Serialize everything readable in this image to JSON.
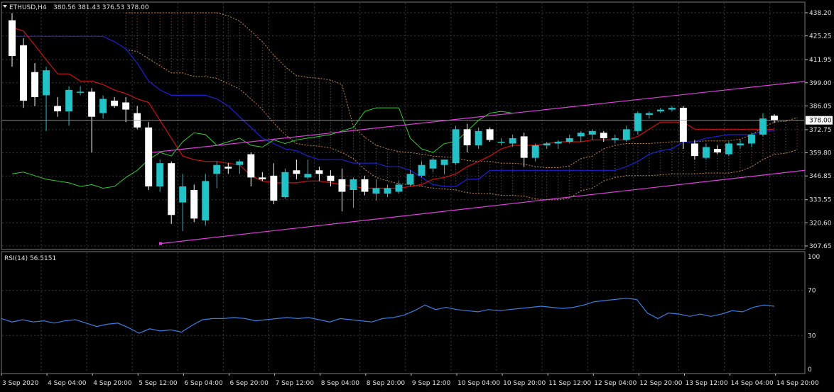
{
  "main_panel": {
    "symbol_header": "ETHUSD,H4",
    "ohlc_header": "380.56 381.43 376.53 378.00",
    "current_price_label": "378.00"
  },
  "rsi_panel": {
    "label": "RSI(14) 56.5151"
  },
  "colors": {
    "background": "#000000",
    "grid": "#3a3a3a",
    "bull_candle": "#22c3c8",
    "bear_candle": "#ffffff",
    "kijun": "#1f1fd6",
    "tenkan": "#d01010",
    "chikou": "#2ecc2e",
    "cloud": "#c8843c",
    "channel": "#e040e0",
    "rsi": "#3a7fe0"
  },
  "chart_data": [
    {
      "type": "candlestick",
      "symbol": "ETHUSD",
      "timeframe": "H4",
      "ylim": [
        307.65,
        438.2
      ],
      "yticks": [
        307.65,
        320.6,
        333.55,
        346.85,
        359.8,
        372.75,
        386.05,
        399.0,
        411.95,
        425.25,
        438.2
      ],
      "ytick_labels": [
        "307.65",
        "320.60",
        "333.55",
        "346.85",
        "359.80",
        "372.75",
        "386.05",
        "399.00",
        "411.95",
        "425.25",
        "438.20"
      ],
      "xtick_labels": [
        "3 Sep 2020",
        "4 Sep 04:00",
        "4 Sep 20:00",
        "5 Sep 12:00",
        "6 Sep 04:00",
        "6 Sep 20:00",
        "7 Sep 12:00",
        "8 Sep 04:00",
        "8 Sep 20:00",
        "9 Sep 12:00",
        "10 Sep 04:00",
        "10 Sep 20:00",
        "11 Sep 12:00",
        "12 Sep 04:00",
        "12 Sep 20:00",
        "13 Sep 12:00",
        "14 Sep 04:00",
        "14 Sep 20:00"
      ],
      "candles": [
        {
          "o": 434,
          "h": 438,
          "l": 408,
          "c": 414
        },
        {
          "o": 420,
          "h": 424,
          "l": 385,
          "c": 389
        },
        {
          "o": 405,
          "h": 410,
          "l": 386,
          "c": 391
        },
        {
          "o": 392,
          "h": 408,
          "l": 372,
          "c": 406
        },
        {
          "o": 386,
          "h": 391,
          "l": 380,
          "c": 383
        },
        {
          "o": 383,
          "h": 397,
          "l": 375,
          "c": 395
        },
        {
          "o": 394,
          "h": 397,
          "l": 392,
          "c": 394
        },
        {
          "o": 394,
          "h": 396,
          "l": 360,
          "c": 380
        },
        {
          "o": 382,
          "h": 392,
          "l": 379,
          "c": 390
        },
        {
          "o": 389,
          "h": 391,
          "l": 385,
          "c": 386
        },
        {
          "o": 388,
          "h": 391,
          "l": 377,
          "c": 384
        },
        {
          "o": 382,
          "h": 386,
          "l": 373,
          "c": 374
        },
        {
          "o": 374,
          "h": 377,
          "l": 339,
          "c": 341
        },
        {
          "o": 341,
          "h": 356,
          "l": 338,
          "c": 354
        },
        {
          "o": 354,
          "h": 355,
          "l": 320,
          "c": 325
        },
        {
          "o": 332,
          "h": 348,
          "l": 316,
          "c": 341
        },
        {
          "o": 339,
          "h": 342,
          "l": 321,
          "c": 323
        },
        {
          "o": 322,
          "h": 348,
          "l": 319,
          "c": 344
        },
        {
          "o": 348,
          "h": 355,
          "l": 340,
          "c": 353
        },
        {
          "o": 352,
          "h": 354,
          "l": 348,
          "c": 351
        },
        {
          "o": 353,
          "h": 356,
          "l": 348,
          "c": 355
        },
        {
          "o": 359,
          "h": 360,
          "l": 341,
          "c": 346
        },
        {
          "o": 346,
          "h": 349,
          "l": 344,
          "c": 345
        },
        {
          "o": 347,
          "h": 354,
          "l": 331,
          "c": 333
        },
        {
          "o": 335,
          "h": 351,
          "l": 334,
          "c": 349
        },
        {
          "o": 350,
          "h": 356,
          "l": 345,
          "c": 348
        },
        {
          "o": 346,
          "h": 356,
          "l": 345,
          "c": 348
        },
        {
          "o": 350,
          "h": 352,
          "l": 344,
          "c": 348
        },
        {
          "o": 347,
          "h": 350,
          "l": 341,
          "c": 344
        },
        {
          "o": 345,
          "h": 351,
          "l": 327,
          "c": 338
        },
        {
          "o": 339,
          "h": 346,
          "l": 329,
          "c": 345
        },
        {
          "o": 345,
          "h": 347,
          "l": 336,
          "c": 338
        },
        {
          "o": 337,
          "h": 345,
          "l": 333,
          "c": 340
        },
        {
          "o": 337,
          "h": 342,
          "l": 335,
          "c": 340
        },
        {
          "o": 338,
          "h": 344,
          "l": 337,
          "c": 342
        },
        {
          "o": 342,
          "h": 350,
          "l": 341,
          "c": 348
        },
        {
          "o": 347,
          "h": 355,
          "l": 346,
          "c": 353
        },
        {
          "o": 351,
          "h": 357,
          "l": 349,
          "c": 356
        },
        {
          "o": 353,
          "h": 356,
          "l": 348,
          "c": 356
        },
        {
          "o": 354,
          "h": 375,
          "l": 353,
          "c": 373
        },
        {
          "o": 373,
          "h": 376,
          "l": 360,
          "c": 364
        },
        {
          "o": 364,
          "h": 374,
          "l": 362,
          "c": 372
        },
        {
          "o": 373,
          "h": 374,
          "l": 366,
          "c": 367
        },
        {
          "o": 366,
          "h": 368,
          "l": 364,
          "c": 366
        },
        {
          "o": 365,
          "h": 370,
          "l": 363,
          "c": 368
        },
        {
          "o": 369,
          "h": 371,
          "l": 352,
          "c": 357
        },
        {
          "o": 357,
          "h": 365,
          "l": 355,
          "c": 364
        },
        {
          "o": 364,
          "h": 366,
          "l": 362,
          "c": 365
        },
        {
          "o": 365,
          "h": 367,
          "l": 362,
          "c": 366
        },
        {
          "o": 366,
          "h": 370,
          "l": 365,
          "c": 368
        },
        {
          "o": 369,
          "h": 372,
          "l": 366,
          "c": 371
        },
        {
          "o": 370,
          "h": 373,
          "l": 367,
          "c": 372
        },
        {
          "o": 371,
          "h": 372,
          "l": 366,
          "c": 368
        },
        {
          "o": 367,
          "h": 370,
          "l": 365,
          "c": 368
        },
        {
          "o": 367,
          "h": 375,
          "l": 366,
          "c": 373
        },
        {
          "o": 372,
          "h": 383,
          "l": 370,
          "c": 382
        },
        {
          "o": 381,
          "h": 383,
          "l": 379,
          "c": 382
        },
        {
          "o": 383,
          "h": 385,
          "l": 382,
          "c": 384
        },
        {
          "o": 384,
          "h": 386,
          "l": 383,
          "c": 385
        },
        {
          "o": 385,
          "h": 386,
          "l": 362,
          "c": 366
        },
        {
          "o": 365,
          "h": 367,
          "l": 356,
          "c": 358
        },
        {
          "o": 357,
          "h": 365,
          "l": 356,
          "c": 363
        },
        {
          "o": 362,
          "h": 364,
          "l": 359,
          "c": 360
        },
        {
          "o": 359,
          "h": 366,
          "l": 358,
          "c": 365
        },
        {
          "o": 364,
          "h": 367,
          "l": 362,
          "c": 365
        },
        {
          "o": 365,
          "h": 371,
          "l": 363,
          "c": 370
        },
        {
          "o": 370,
          "h": 382,
          "l": 369,
          "c": 379
        },
        {
          "o": 380.56,
          "h": 381.43,
          "l": 376.53,
          "c": 378.0
        }
      ],
      "indicators": {
        "ichimoku_kijun": [
          425,
          425,
          425,
          425,
          425,
          425,
          425,
          425,
          425,
          422,
          418,
          410,
          400,
          395,
          392,
          392,
          392,
          392,
          390,
          386,
          380,
          374,
          368,
          365,
          362,
          361,
          358,
          356,
          356,
          356,
          354,
          354,
          354,
          352,
          352,
          350,
          346,
          342,
          341,
          341,
          345,
          345,
          350,
          350,
          350,
          350,
          350,
          350,
          350,
          350,
          350,
          350,
          350,
          350,
          352,
          355,
          359,
          361,
          362,
          366,
          366,
          368,
          369,
          370,
          370,
          370,
          372,
          372
        ],
        "ichimoku_tenkan": [
          430,
          428,
          420,
          412,
          404,
          404,
          400,
          400,
          398,
          395,
          393,
          390,
          388,
          378,
          368,
          358,
          356,
          355,
          355,
          354,
          353,
          347,
          344,
          343,
          343,
          343,
          344,
          344,
          343,
          342,
          341,
          340,
          340,
          340,
          340,
          341,
          342,
          345,
          346,
          348,
          352,
          355,
          358,
          362,
          364,
          364,
          364,
          365,
          366,
          366,
          366,
          367,
          367,
          367,
          367,
          369,
          373,
          377,
          377,
          377,
          373,
          373,
          373,
          373,
          373,
          373,
          373,
          373
        ],
        "chikou": [
          348,
          349,
          347,
          345,
          344,
          343,
          341,
          342,
          340,
          341,
          346,
          350,
          356,
          360,
          358,
          366,
          371,
          370,
          364,
          366,
          368,
          364,
          363,
          367,
          365,
          367,
          368,
          369,
          370,
          372,
          374,
          383,
          385,
          385,
          385,
          368,
          362,
          360,
          365,
          366,
          372,
          378,
          382,
          383,
          382
        ]
      },
      "trend_channel": {
        "upper_line": {
          "from_price": 359.8,
          "to_price": 399.8
        },
        "lower_line": {
          "from_price": 309.0,
          "to_price": 350.0
        }
      }
    },
    {
      "type": "line",
      "name": "RSI(14)",
      "ylim": [
        0,
        100
      ],
      "yticks": [
        0,
        30,
        70,
        100
      ],
      "ytick_labels": [
        "0",
        "30",
        "70",
        "100"
      ],
      "values": [
        45,
        42,
        44,
        42,
        43,
        41,
        43,
        44,
        41,
        38,
        40,
        41,
        37,
        32,
        36,
        34,
        35,
        33,
        39,
        44,
        45,
        45,
        46,
        45,
        43,
        44,
        45,
        46,
        45,
        46,
        44,
        42,
        45,
        44,
        43,
        42,
        45,
        46,
        48,
        52,
        57,
        53,
        55,
        53,
        52,
        51,
        53,
        52,
        53,
        54,
        55,
        56,
        55,
        54,
        55,
        57,
        60,
        61,
        62,
        63,
        62,
        50,
        45,
        50,
        49,
        47,
        49,
        47,
        49,
        52,
        51,
        55,
        57,
        56
      ]
    }
  ]
}
